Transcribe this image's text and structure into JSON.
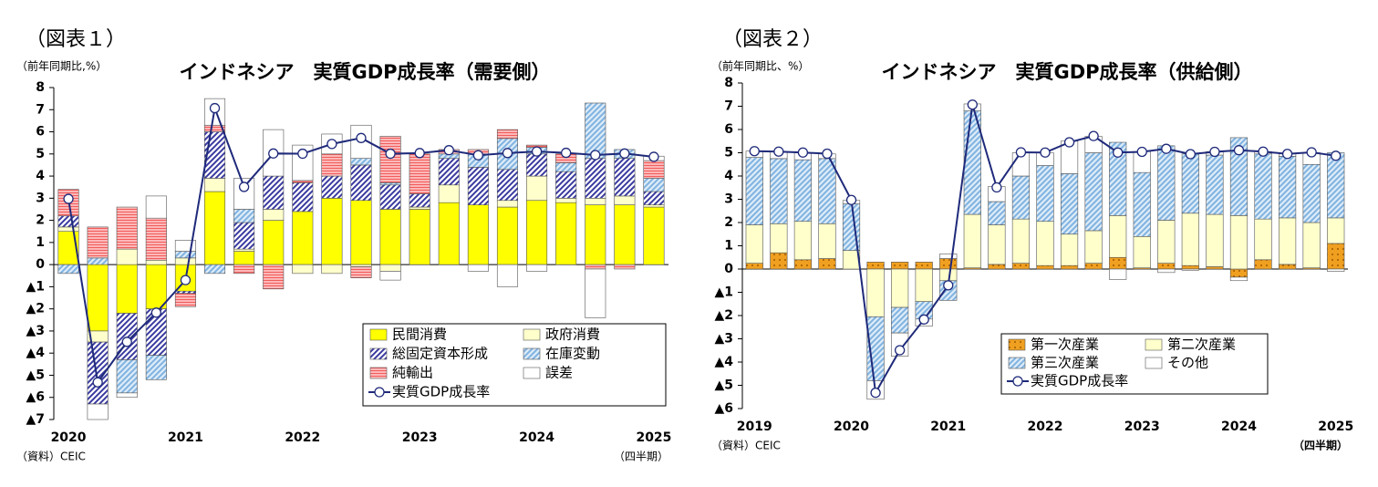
{
  "chart_data": [
    {
      "type": "bar",
      "stacked": true,
      "figure_label": "（図表１）",
      "title": "インドネシア　実質GDP成長率（需要側）",
      "y_label": "（前年同期比,%）",
      "source": "（資料）CEIC",
      "x_label": "（四半期）",
      "categories": [
        "2020",
        null,
        null,
        null,
        "2021",
        null,
        null,
        null,
        "2022",
        null,
        null,
        null,
        "2023",
        null,
        null,
        null,
        "2024",
        null,
        null,
        null,
        "2025"
      ],
      "ylim": [
        -7,
        8
      ],
      "yticks": [
        {
          "value": -7,
          "label": "▲7"
        },
        {
          "value": -6,
          "label": "▲6"
        },
        {
          "value": -5,
          "label": "▲5"
        },
        {
          "value": -4,
          "label": "▲4"
        },
        {
          "value": -3,
          "label": "▲3"
        },
        {
          "value": -2,
          "label": "▲2"
        },
        {
          "value": -1,
          "label": "▲1"
        },
        0,
        1,
        2,
        3,
        4,
        5,
        6,
        7,
        8
      ],
      "grid": false,
      "series": [
        {
          "name": "民間消費",
          "type": "bar",
          "color": "#ffff00",
          "pattern": null,
          "values": [
            1.5,
            -3.0,
            -2.2,
            -2.0,
            -1.2,
            3.3,
            0.6,
            2.0,
            2.4,
            3.0,
            2.9,
            2.5,
            2.5,
            2.8,
            2.7,
            2.6,
            2.9,
            2.8,
            2.7,
            2.7,
            2.6
          ]
        },
        {
          "name": "政府消費",
          "type": "bar",
          "color": "#ffffcc",
          "pattern": null,
          "values": [
            0.2,
            -0.5,
            0.7,
            0.2,
            0.3,
            0.6,
            0.1,
            0.5,
            -0.4,
            -0.4,
            -0.1,
            -0.3,
            0.1,
            0.8,
            0.0,
            0.3,
            1.1,
            0.2,
            0.3,
            0.4,
            0.1
          ]
        },
        {
          "name": "総固定資本形成",
          "type": "bar",
          "color": "#3a3aa0",
          "pattern": "diagonal",
          "values": [
            0.5,
            -2.8,
            -2.1,
            -2.1,
            -0.1,
            2.1,
            1.2,
            1.5,
            1.3,
            1.0,
            1.6,
            1.1,
            0.6,
            1.2,
            1.7,
            1.4,
            1.0,
            1.2,
            1.8,
            1.7,
            0.6
          ]
        },
        {
          "name": "在庫変動",
          "type": "bar",
          "color": "#7fb2e0",
          "pattern": "diagonal",
          "values": [
            -0.4,
            0.3,
            -1.5,
            -1.1,
            0.3,
            -0.4,
            0.6,
            0.0,
            0.0,
            0.0,
            0.3,
            0.1,
            0.0,
            0.2,
            0.6,
            1.4,
            0.3,
            0.4,
            2.5,
            0.4,
            0.6
          ]
        },
        {
          "name": "純輸出",
          "type": "bar",
          "color": "#f25c5c",
          "pattern": "horizontal",
          "values": [
            1.2,
            1.4,
            1.9,
            1.9,
            -0.6,
            0.3,
            -0.4,
            -1.1,
            0.1,
            1.0,
            -0.5,
            2.1,
            1.8,
            0.2,
            0.2,
            0.4,
            0.1,
            0.4,
            -0.2,
            -0.2,
            0.8
          ]
        },
        {
          "name": "誤差",
          "type": "bar",
          "color": "#ffffff",
          "pattern": null,
          "values": [
            0.0,
            -0.7,
            -0.2,
            1.0,
            0.5,
            1.2,
            1.4,
            2.1,
            1.6,
            0.9,
            1.5,
            -0.4,
            0.0,
            0.0,
            -0.3,
            -1.0,
            -0.3,
            0.0,
            -2.2,
            0.0,
            0.2
          ]
        },
        {
          "name": "実質GDP成長率",
          "type": "line",
          "color": "#1f2a7a",
          "values": [
            2.97,
            -5.32,
            -3.49,
            -2.17,
            -0.7,
            7.07,
            3.51,
            5.02,
            5.01,
            5.45,
            5.72,
            5.01,
            5.04,
            5.17,
            4.94,
            5.04,
            5.11,
            5.05,
            4.95,
            5.02,
            4.87
          ]
        }
      ]
    },
    {
      "type": "bar",
      "stacked": true,
      "figure_label": "（図表２）",
      "title": "インドネシア　実質GDP成長率（供給側）",
      "y_label": "（前年同期比、%）",
      "source": "（資料）CEIC",
      "x_label": "（四半期）",
      "categories": [
        "2019",
        null,
        null,
        null,
        "2020",
        null,
        null,
        null,
        "2021",
        null,
        null,
        null,
        "2022",
        null,
        null,
        null,
        "2023",
        null,
        null,
        null,
        "2024",
        null,
        null,
        null,
        "2025"
      ],
      "ylim": [
        -6,
        8
      ],
      "yticks": [
        {
          "value": -6,
          "label": "▲6"
        },
        {
          "value": -5,
          "label": "▲5"
        },
        {
          "value": -4,
          "label": "▲4"
        },
        {
          "value": -3,
          "label": "▲3"
        },
        {
          "value": -2,
          "label": "▲2"
        },
        {
          "value": -1,
          "label": "▲1"
        },
        0,
        1,
        2,
        3,
        4,
        5,
        6,
        7,
        8
      ],
      "grid": false,
      "series": [
        {
          "name": "第一次産業",
          "type": "bar",
          "color": "#f0a020",
          "pattern": "dots",
          "values": [
            0.25,
            0.7,
            0.4,
            0.45,
            0.0,
            0.3,
            0.3,
            0.3,
            0.45,
            0.05,
            0.2,
            0.25,
            0.15,
            0.15,
            0.25,
            0.5,
            0.05,
            0.25,
            0.15,
            0.1,
            -0.35,
            0.4,
            0.2,
            0.05,
            1.1
          ]
        },
        {
          "name": "第二次産業",
          "type": "bar",
          "color": "#ffffcc",
          "pattern": null,
          "values": [
            1.65,
            1.25,
            1.65,
            1.5,
            0.8,
            -2.05,
            -1.65,
            -1.4,
            -0.5,
            2.3,
            1.7,
            1.9,
            1.9,
            1.35,
            1.4,
            1.8,
            1.35,
            1.85,
            2.25,
            2.25,
            2.3,
            1.75,
            2.0,
            1.95,
            1.1
          ]
        },
        {
          "name": "第三次産業",
          "type": "bar",
          "color": "#7fb2e0",
          "pattern": "diagonal",
          "values": [
            2.9,
            2.8,
            2.65,
            2.8,
            2.0,
            -2.75,
            -1.1,
            -0.75,
            -0.85,
            4.45,
            1.0,
            1.85,
            2.4,
            2.6,
            3.35,
            3.15,
            2.75,
            3.2,
            2.55,
            2.55,
            3.35,
            2.8,
            2.65,
            2.5,
            2.8
          ]
        },
        {
          "name": "その他",
          "type": "bar",
          "color": "#ffffff",
          "pattern": null,
          "values": [
            0.27,
            0.3,
            0.3,
            0.2,
            0.15,
            -0.8,
            -1.0,
            -0.3,
            0.2,
            0.3,
            0.65,
            1.0,
            0.55,
            1.4,
            0.7,
            -0.45,
            0.9,
            -0.15,
            -0.05,
            0.15,
            -0.15,
            0.1,
            0.1,
            0.5,
            -0.1
          ]
        },
        {
          "name": "実質GDP成長率",
          "type": "line",
          "color": "#1f2a7a",
          "values": [
            5.07,
            5.05,
            5.01,
            4.96,
            2.97,
            -5.32,
            -3.49,
            -2.17,
            -0.7,
            7.07,
            3.51,
            5.02,
            5.01,
            5.45,
            5.72,
            5.01,
            5.04,
            5.17,
            4.94,
            5.04,
            5.11,
            5.05,
            4.95,
            5.02,
            4.87
          ]
        }
      ]
    }
  ]
}
